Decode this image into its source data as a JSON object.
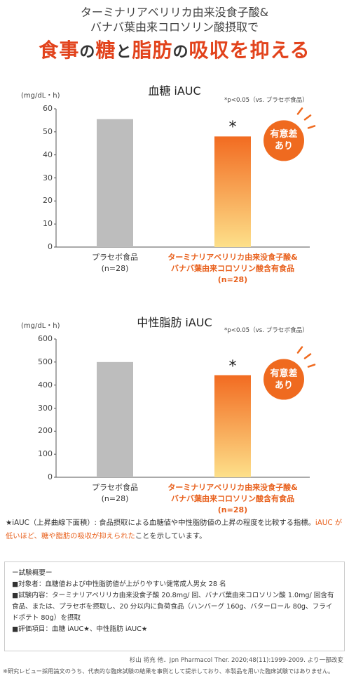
{
  "header": {
    "line1": "ターミナリアベリリカ由来没食子酸&",
    "line2": "バナバ葉由来コロソリン酸摂取で",
    "headline": [
      "食事",
      "の",
      "糖",
      "と",
      "脂肪",
      "の",
      "吸収を抑える"
    ]
  },
  "chart_data": [
    {
      "type": "bar",
      "title": "血糖 iAUC",
      "y_unit": "(mg/dL・h)",
      "note": "*p<0.05（vs. プラセボ食品）",
      "categories": [
        "プラセボ食品\n(n=28)",
        "ターミナリアベリリカ由来没食子酸&\nバナバ葉由来コロソリン酸含有食品\n(n=28)"
      ],
      "values": [
        55.5,
        48
      ],
      "colors": [
        [
          "#bdbdbd",
          "#bdbdbd"
        ],
        [
          "#f26b21",
          "#fde08a"
        ]
      ],
      "label_colors": [
        "#333333",
        "#e8601c"
      ],
      "ylim": [
        0,
        60
      ],
      "yticks": [
        0,
        10,
        20,
        30,
        40,
        50,
        60
      ],
      "significance_mark": "*",
      "badge": "有意差\nあり",
      "badge_color": "#ef6a1f"
    },
    {
      "type": "bar",
      "title": "中性脂肪 iAUC",
      "y_unit": "(mg/dL・h)",
      "note": "*p<0.05（vs. プラセボ食品）",
      "categories": [
        "プラセボ食品\n(n=28)",
        "ターミナリアベリリカ由来没食子酸&\nバナバ葉由来コロソリン酸含有食品\n(n=28)"
      ],
      "values": [
        500,
        443
      ],
      "colors": [
        [
          "#bdbdbd",
          "#bdbdbd"
        ],
        [
          "#f26b21",
          "#fde08a"
        ]
      ],
      "label_colors": [
        "#333333",
        "#e8601c"
      ],
      "ylim": [
        0,
        600
      ],
      "yticks": [
        0,
        100,
        200,
        300,
        400,
        500,
        600
      ],
      "significance_mark": "*",
      "badge": "有意差\nあり",
      "badge_color": "#ef6a1f"
    }
  ],
  "footnote": [
    "★iAUC（上昇曲線下面積）: 食品摂取による血糖値や中性脂肪値の上昇の程度を比較する指標。",
    "iAUC が低いほど、糖や脂肪の吸収が抑えられた",
    "ことを示しています。"
  ],
  "summary": {
    "title": "ー試験概要ー",
    "items": [
      "■対象者：血糖値および中性脂肪値が上がりやすい健常成人男女 28 名",
      "■試験内容：ターミナリアベリリカ由来没食子酸 20.8mg/ 回、バナバ葉由来コロソリン酸 1.0mg/ 回含有食品、または、プラセボを摂取し、20 分以内に負荷食品（ハンバーグ 160g、バターロール 80g、フライドポテト 80g）を摂取",
      "■評価項目：血糖 iAUC★、中性脂肪 iAUC★"
    ]
  },
  "citation": "杉山 将充 他．Jpn Pharmacol Ther. 2020;48(11):1999-2009. より一部改変",
  "disclaimer": "※研究レビュー採用論文のうち、代表的な臨床試験の結果を事例として提示しており、本製品を用いた臨床試験ではありません。"
}
